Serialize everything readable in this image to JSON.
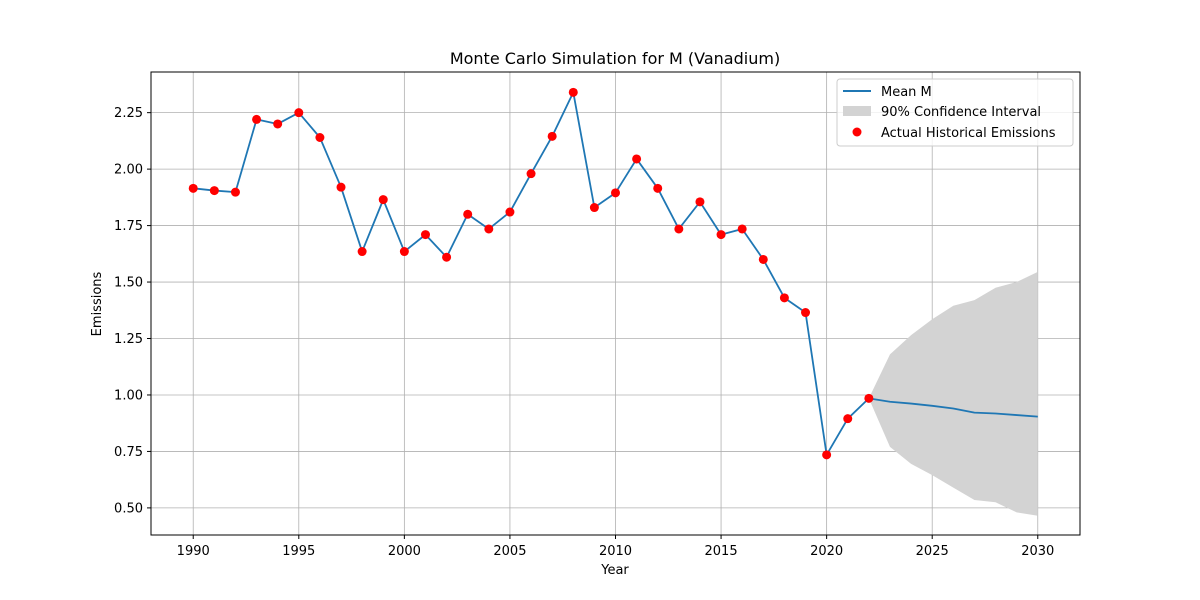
{
  "chart_data": {
    "type": "line",
    "title": "Monte Carlo Simulation for M (Vanadium)",
    "xlabel": "Year",
    "ylabel": "Emissions",
    "xlim": [
      1988,
      2032
    ],
    "ylim": [
      0.38,
      2.43
    ],
    "xticks": [
      1990,
      1995,
      2000,
      2005,
      2010,
      2015,
      2020,
      2025,
      2030
    ],
    "yticks": [
      0.5,
      0.75,
      1.0,
      1.25,
      1.5,
      1.75,
      2.0,
      2.25
    ],
    "ytick_labels": [
      "0.50",
      "0.75",
      "1.00",
      "1.25",
      "1.50",
      "1.75",
      "2.00",
      "2.25"
    ],
    "grid": true,
    "legend_position": "top-right",
    "colors": {
      "mean": "#1f77b4",
      "band": "#d3d3d3",
      "points": "#ff0000"
    },
    "series": [
      {
        "name": "Mean M",
        "x": [
          1990,
          1991,
          1992,
          1993,
          1994,
          1995,
          1996,
          1997,
          1998,
          1999,
          2000,
          2001,
          2002,
          2003,
          2004,
          2005,
          2006,
          2007,
          2008,
          2009,
          2010,
          2011,
          2012,
          2013,
          2014,
          2015,
          2016,
          2017,
          2018,
          2019,
          2020,
          2021,
          2022,
          2023,
          2024,
          2025,
          2026,
          2027,
          2028,
          2029,
          2030
        ],
        "y": [
          1.915,
          1.905,
          1.898,
          2.22,
          2.2,
          2.25,
          2.14,
          1.92,
          1.635,
          1.865,
          1.635,
          1.71,
          1.61,
          1.8,
          1.735,
          1.81,
          1.98,
          2.145,
          2.34,
          1.83,
          1.895,
          2.045,
          1.915,
          1.735,
          1.855,
          1.71,
          1.735,
          1.6,
          1.43,
          1.365,
          0.735,
          0.895,
          0.985,
          0.97,
          0.962,
          0.952,
          0.94,
          0.922,
          0.918,
          0.911,
          0.904
        ]
      },
      {
        "name": "90% Confidence Interval",
        "x": [
          2022,
          2023,
          2024,
          2025,
          2026,
          2027,
          2028,
          2029,
          2030
        ],
        "lower": [
          0.985,
          0.77,
          0.695,
          0.645,
          0.59,
          0.535,
          0.525,
          0.48,
          0.465
        ],
        "upper": [
          0.985,
          1.18,
          1.265,
          1.335,
          1.395,
          1.42,
          1.475,
          1.5,
          1.545
        ]
      },
      {
        "name": "Actual Historical Emissions",
        "x": [
          1990,
          1991,
          1992,
          1993,
          1994,
          1995,
          1996,
          1997,
          1998,
          1999,
          2000,
          2001,
          2002,
          2003,
          2004,
          2005,
          2006,
          2007,
          2008,
          2009,
          2010,
          2011,
          2012,
          2013,
          2014,
          2015,
          2016,
          2017,
          2018,
          2019,
          2020,
          2021,
          2022
        ],
        "y": [
          1.915,
          1.905,
          1.898,
          2.22,
          2.2,
          2.25,
          2.14,
          1.92,
          1.635,
          1.865,
          1.635,
          1.71,
          1.61,
          1.8,
          1.735,
          1.81,
          1.98,
          2.145,
          2.34,
          1.83,
          1.895,
          2.045,
          1.915,
          1.735,
          1.855,
          1.71,
          1.735,
          1.6,
          1.43,
          1.365,
          0.735,
          0.895,
          0.985
        ]
      }
    ]
  }
}
